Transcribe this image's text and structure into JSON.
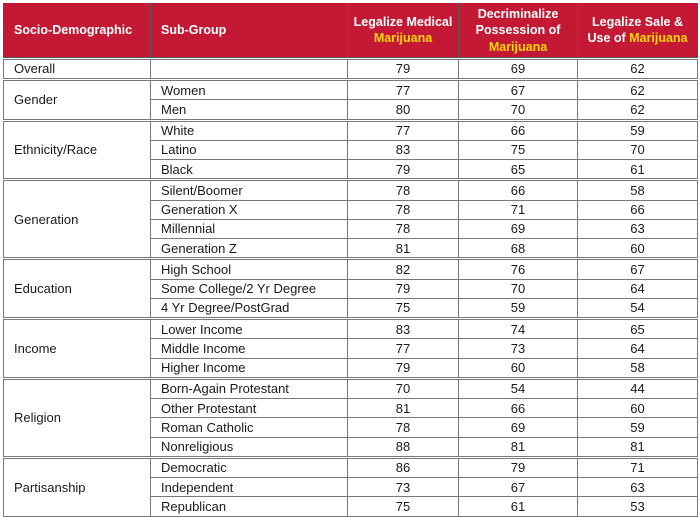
{
  "table": {
    "headers": {
      "col1": "Socio-Demographic",
      "col2": "Sub-Group",
      "col3_pre": "Legalize Medical",
      "col3_hl": "Marijuana",
      "col4_pre": "Decriminalize Possession of",
      "col4_hl": "Marijuana",
      "col5_pre": "Legalize Sale & Use of",
      "col5_hl": "Marijuana"
    },
    "accent_color": "#c41935",
    "highlight_color": "#ffd800",
    "groups": [
      {
        "label": "Overall",
        "rows": [
          {
            "subgroup": "",
            "values": [
              79,
              69,
              62
            ]
          }
        ]
      },
      {
        "label": "Gender",
        "rows": [
          {
            "subgroup": "Women",
            "values": [
              77,
              67,
              62
            ]
          },
          {
            "subgroup": "Men",
            "values": [
              80,
              70,
              62
            ]
          }
        ]
      },
      {
        "label": "Ethnicity/Race",
        "rows": [
          {
            "subgroup": "White",
            "values": [
              77,
              66,
              59
            ]
          },
          {
            "subgroup": "Latino",
            "values": [
              83,
              75,
              70
            ]
          },
          {
            "subgroup": "Black",
            "values": [
              79,
              65,
              61
            ]
          }
        ]
      },
      {
        "label": "Generation",
        "rows": [
          {
            "subgroup": "Silent/Boomer",
            "values": [
              78,
              66,
              58
            ]
          },
          {
            "subgroup": "Generation X",
            "values": [
              78,
              71,
              66
            ]
          },
          {
            "subgroup": "Millennial",
            "values": [
              78,
              69,
              63
            ]
          },
          {
            "subgroup": "Generation Z",
            "values": [
              81,
              68,
              60
            ]
          }
        ]
      },
      {
        "label": "Education",
        "rows": [
          {
            "subgroup": "High School",
            "values": [
              82,
              76,
              67
            ]
          },
          {
            "subgroup": "Some College/2 Yr Degree",
            "values": [
              79,
              70,
              64
            ]
          },
          {
            "subgroup": "4 Yr Degree/PostGrad",
            "values": [
              75,
              59,
              54
            ]
          }
        ]
      },
      {
        "label": "Income",
        "rows": [
          {
            "subgroup": "Lower Income",
            "values": [
              83,
              74,
              65
            ]
          },
          {
            "subgroup": "Middle Income",
            "values": [
              77,
              73,
              64
            ]
          },
          {
            "subgroup": "Higher Income",
            "values": [
              79,
              60,
              58
            ]
          }
        ]
      },
      {
        "label": "Religion",
        "rows": [
          {
            "subgroup": "Born-Again Protestant",
            "values": [
              70,
              54,
              44
            ]
          },
          {
            "subgroup": "Other Protestant",
            "values": [
              81,
              66,
              60
            ]
          },
          {
            "subgroup": "Roman Catholic",
            "values": [
              78,
              69,
              59
            ]
          },
          {
            "subgroup": "Nonreligious",
            "values": [
              88,
              81,
              81
            ]
          }
        ]
      },
      {
        "label": "Partisanship",
        "rows": [
          {
            "subgroup": "Democratic",
            "values": [
              86,
              79,
              71
            ]
          },
          {
            "subgroup": "Independent",
            "values": [
              73,
              67,
              63
            ]
          },
          {
            "subgroup": "Republican",
            "values": [
              75,
              61,
              53
            ]
          }
        ]
      }
    ]
  }
}
